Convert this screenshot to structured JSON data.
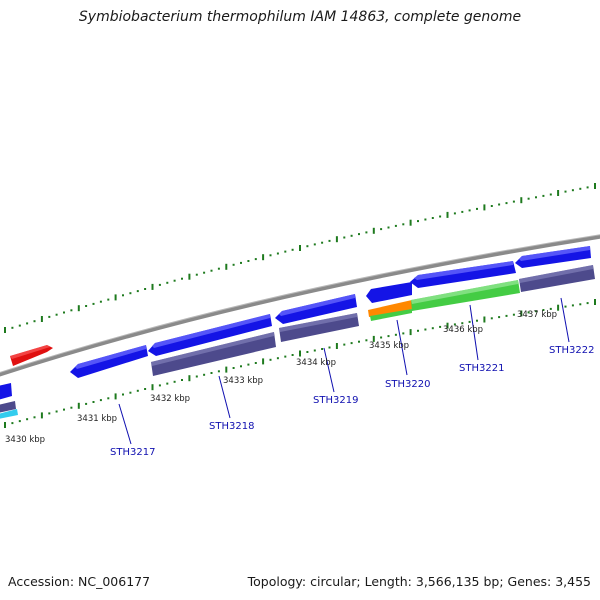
{
  "title": "Symbiobacterium thermophilum IAM 14863, complete genome",
  "footer": {
    "accession": "Accession: NC_006177",
    "stats": "Topology: circular; Length: 3,566,135 bp; Genes: 3,455"
  },
  "colors": {
    "backbone": "#8a8a8a",
    "tick": "#1e7a1e",
    "gene_blue": "#1414e6",
    "gene_slate": "#4d4a8c",
    "gene_green": "#44cc44",
    "gene_orange": "#ff8800",
    "gene_red": "#e01010",
    "gene_cyan": "#33ccee",
    "label": "#1010b0"
  },
  "scale_labels": [
    "3430 kbp",
    "3431 kbp",
    "3432 kbp",
    "3433 kbp",
    "3434 kbp",
    "3435 kbp",
    "3436 kbp",
    "3437 kbp"
  ],
  "gene_labels": [
    "STH3217",
    "STH3218",
    "STH3219",
    "STH3220",
    "STH3221",
    "STH3222"
  ]
}
